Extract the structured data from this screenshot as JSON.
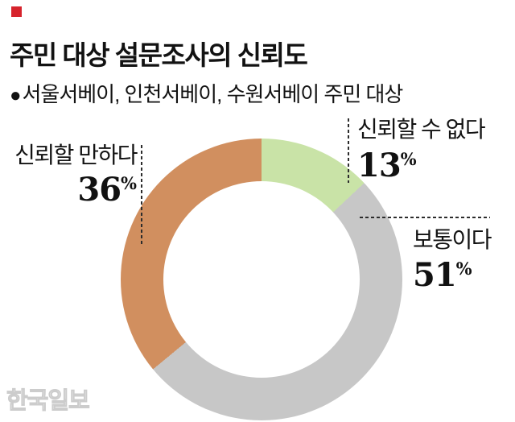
{
  "header": {
    "accent_square_color": "#d6232c",
    "title": "주민 대상 설문조사의 신뢰도",
    "subtitle_bullet": "●",
    "subtitle": "서울서베이, 인천서베이, 수원서베이 주민 대상"
  },
  "chart_data": {
    "type": "pie",
    "subtype": "donut",
    "title": "주민 대상 설문조사의 신뢰도",
    "unit": "%",
    "start_angle_deg": 0,
    "direction": "clockwise",
    "inner_radius_ratio": 0.7,
    "segments": [
      {
        "label": "신뢰할 수 없다",
        "value": 13,
        "color": "#c9e3a7"
      },
      {
        "label": "보통이다",
        "value": 51,
        "color": "#c7c7c7"
      },
      {
        "label": "신뢰할 만하다",
        "value": 36,
        "color": "#d18f5f"
      }
    ]
  },
  "watermark": "한국일보"
}
